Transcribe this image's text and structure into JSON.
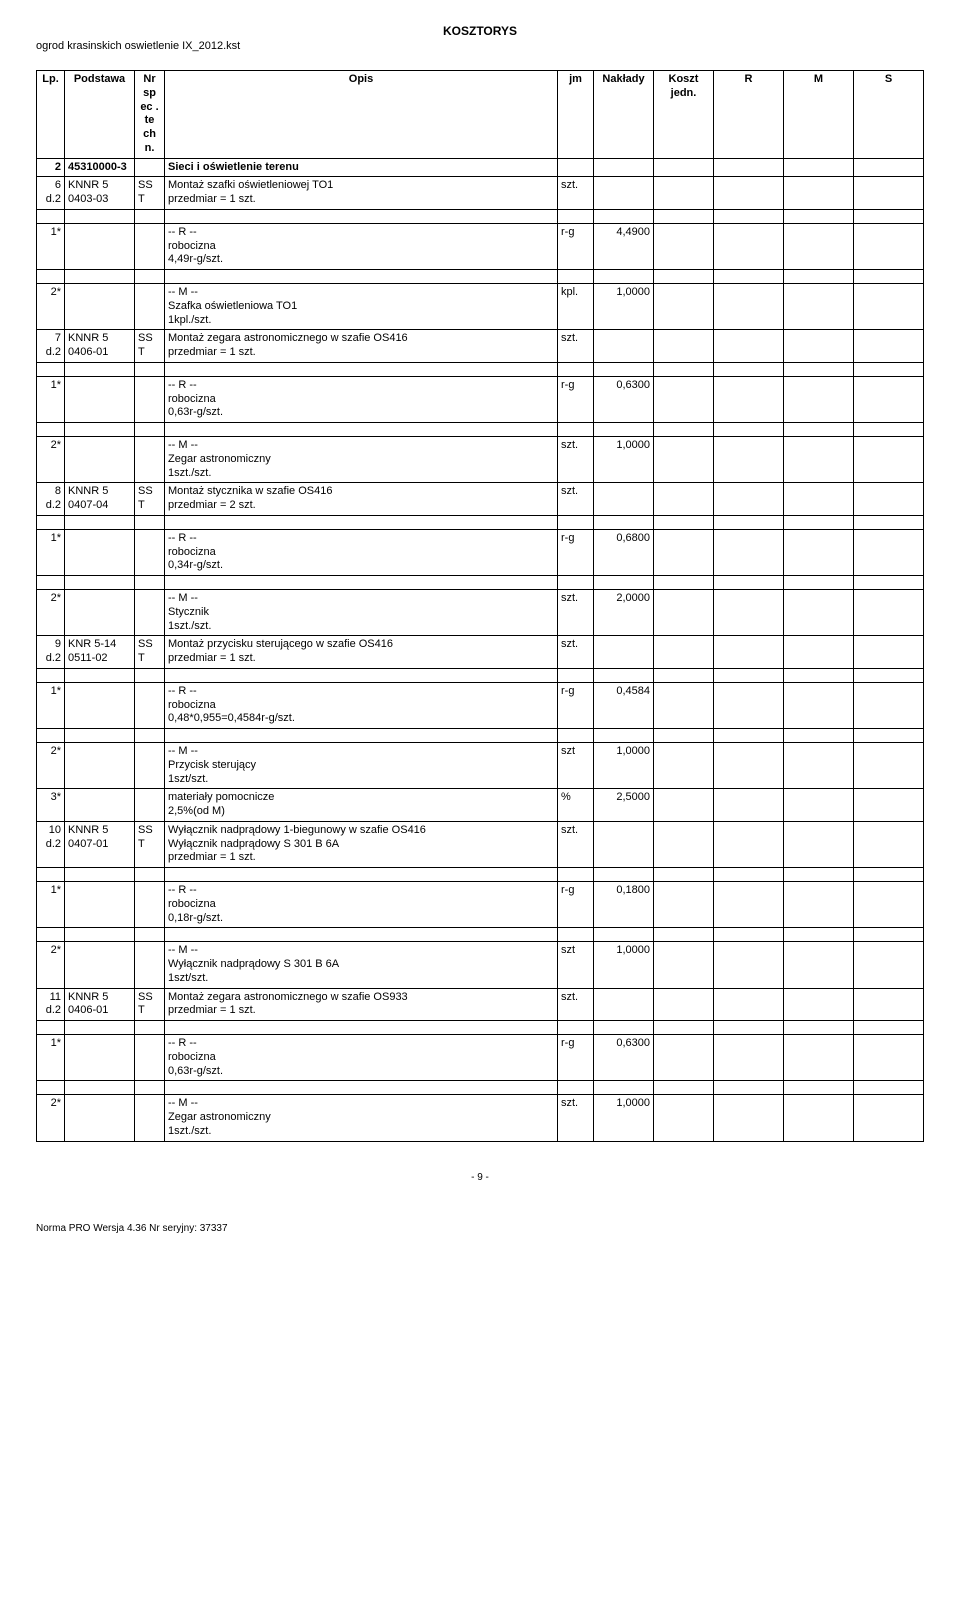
{
  "header": {
    "title": "KOSZTORYS",
    "filename": "ogrod krasinskich oswietlenie IX_2012.kst"
  },
  "columns": {
    "lp": "Lp.",
    "podstawa": "Podstawa",
    "nr": "Nr sp ec . te ch n.",
    "opis": "Opis",
    "jm": "jm",
    "naklady": "Nakłady",
    "koszt": "Koszt jedn.",
    "r": "R",
    "m": "M",
    "s": "S"
  },
  "section": {
    "num": "2",
    "kod": "45310000-3",
    "tytul": "Sieci i oświetlenie terenu"
  },
  "rows": {
    "r6": {
      "lp": "6",
      "d": "d.2",
      "kod": "KNNR 5 0403-03",
      "nr": "SS T",
      "opis": "Montaż szafki oświetleniowej TO1\nprzedmiar  = 1 szt.",
      "jm": "szt."
    },
    "r6_1": {
      "lp": "1*",
      "opis": "-- R --\nrobocizna\n4,49r-g/szt.",
      "jm": "r-g",
      "nak": "4,4900"
    },
    "r6_2": {
      "lp": "2*",
      "opis": "-- M --\nSzafka oświetleniowa TO1\n1kpl./szt.",
      "jm": "kpl.",
      "nak": "1,0000"
    },
    "r7": {
      "lp": "7",
      "d": "d.2",
      "kod": "KNNR 5 0406-01",
      "nr": "SS T",
      "opis": "Montaż zegara astronomicznego w szafie OS416\nprzedmiar  = 1 szt.",
      "jm": "szt."
    },
    "r7_1": {
      "lp": "1*",
      "opis": "-- R --\nrobocizna\n0,63r-g/szt.",
      "jm": "r-g",
      "nak": "0,6300"
    },
    "r7_2": {
      "lp": "2*",
      "opis": "-- M --\nZegar astronomiczny\n1szt./szt.",
      "jm": "szt.",
      "nak": "1,0000"
    },
    "r8": {
      "lp": "8",
      "d": "d.2",
      "kod": "KNNR 5 0407-04",
      "nr": "SS T",
      "opis": "Montaż stycznika w szafie OS416\nprzedmiar  = 2 szt.",
      "jm": "szt."
    },
    "r8_1": {
      "lp": "1*",
      "opis": "-- R --\nrobocizna\n0,34r-g/szt.",
      "jm": "r-g",
      "nak": "0,6800"
    },
    "r8_2": {
      "lp": "2*",
      "opis": "-- M --\nStycznik\n1szt./szt.",
      "jm": "szt.",
      "nak": "2,0000"
    },
    "r9": {
      "lp": "9",
      "d": "d.2",
      "kod": "KNR 5-14 0511-02",
      "nr": "SS T",
      "opis": "Montaż przycisku sterującego w szafie OS416\nprzedmiar  = 1 szt.",
      "jm": "szt."
    },
    "r9_1": {
      "lp": "1*",
      "opis": "-- R --\nrobocizna\n0,48*0,955=0,4584r-g/szt.",
      "jm": "r-g",
      "nak": "0,4584"
    },
    "r9_2": {
      "lp": "2*",
      "opis": "-- M --\nPrzycisk sterujący\n1szt/szt.",
      "jm": "szt",
      "nak": "1,0000"
    },
    "r9_3": {
      "lp": "3*",
      "opis": "materiały pomocnicze\n2,5%(od M)",
      "jm": "%",
      "nak": "2,5000"
    },
    "r10": {
      "lp": "10",
      "d": "d.2",
      "kod": "KNNR 5 0407-01",
      "nr": "SS T",
      "opis": "Wyłącznik nadprądowy 1-biegunowy w szafie OS416\nWyłącznik nadprądowy S 301 B 6A\nprzedmiar  = 1 szt.",
      "jm": "szt."
    },
    "r10_1": {
      "lp": "1*",
      "opis": "-- R --\nrobocizna\n0,18r-g/szt.",
      "jm": "r-g",
      "nak": "0,1800"
    },
    "r10_2": {
      "lp": "2*",
      "opis": "-- M --\nWyłącznik nadprądowy S 301 B 6A\n1szt/szt.",
      "jm": "szt",
      "nak": "1,0000"
    },
    "r11": {
      "lp": "11",
      "d": "d.2",
      "kod": "KNNR 5 0406-01",
      "nr": "SS T",
      "opis": "Montaż zegara astronomicznego w szafie OS933\nprzedmiar  = 1 szt.",
      "jm": "szt."
    },
    "r11_1": {
      "lp": "1*",
      "opis": "-- R --\nrobocizna\n0,63r-g/szt.",
      "jm": "r-g",
      "nak": "0,6300"
    },
    "r11_2": {
      "lp": "2*",
      "opis": "-- M --\nZegar astronomiczny\n1szt./szt.",
      "jm": "szt.",
      "nak": "1,0000"
    }
  },
  "pagenum": "- 9 -",
  "footer": "Norma PRO Wersja 4.36 Nr seryjny: 37337"
}
